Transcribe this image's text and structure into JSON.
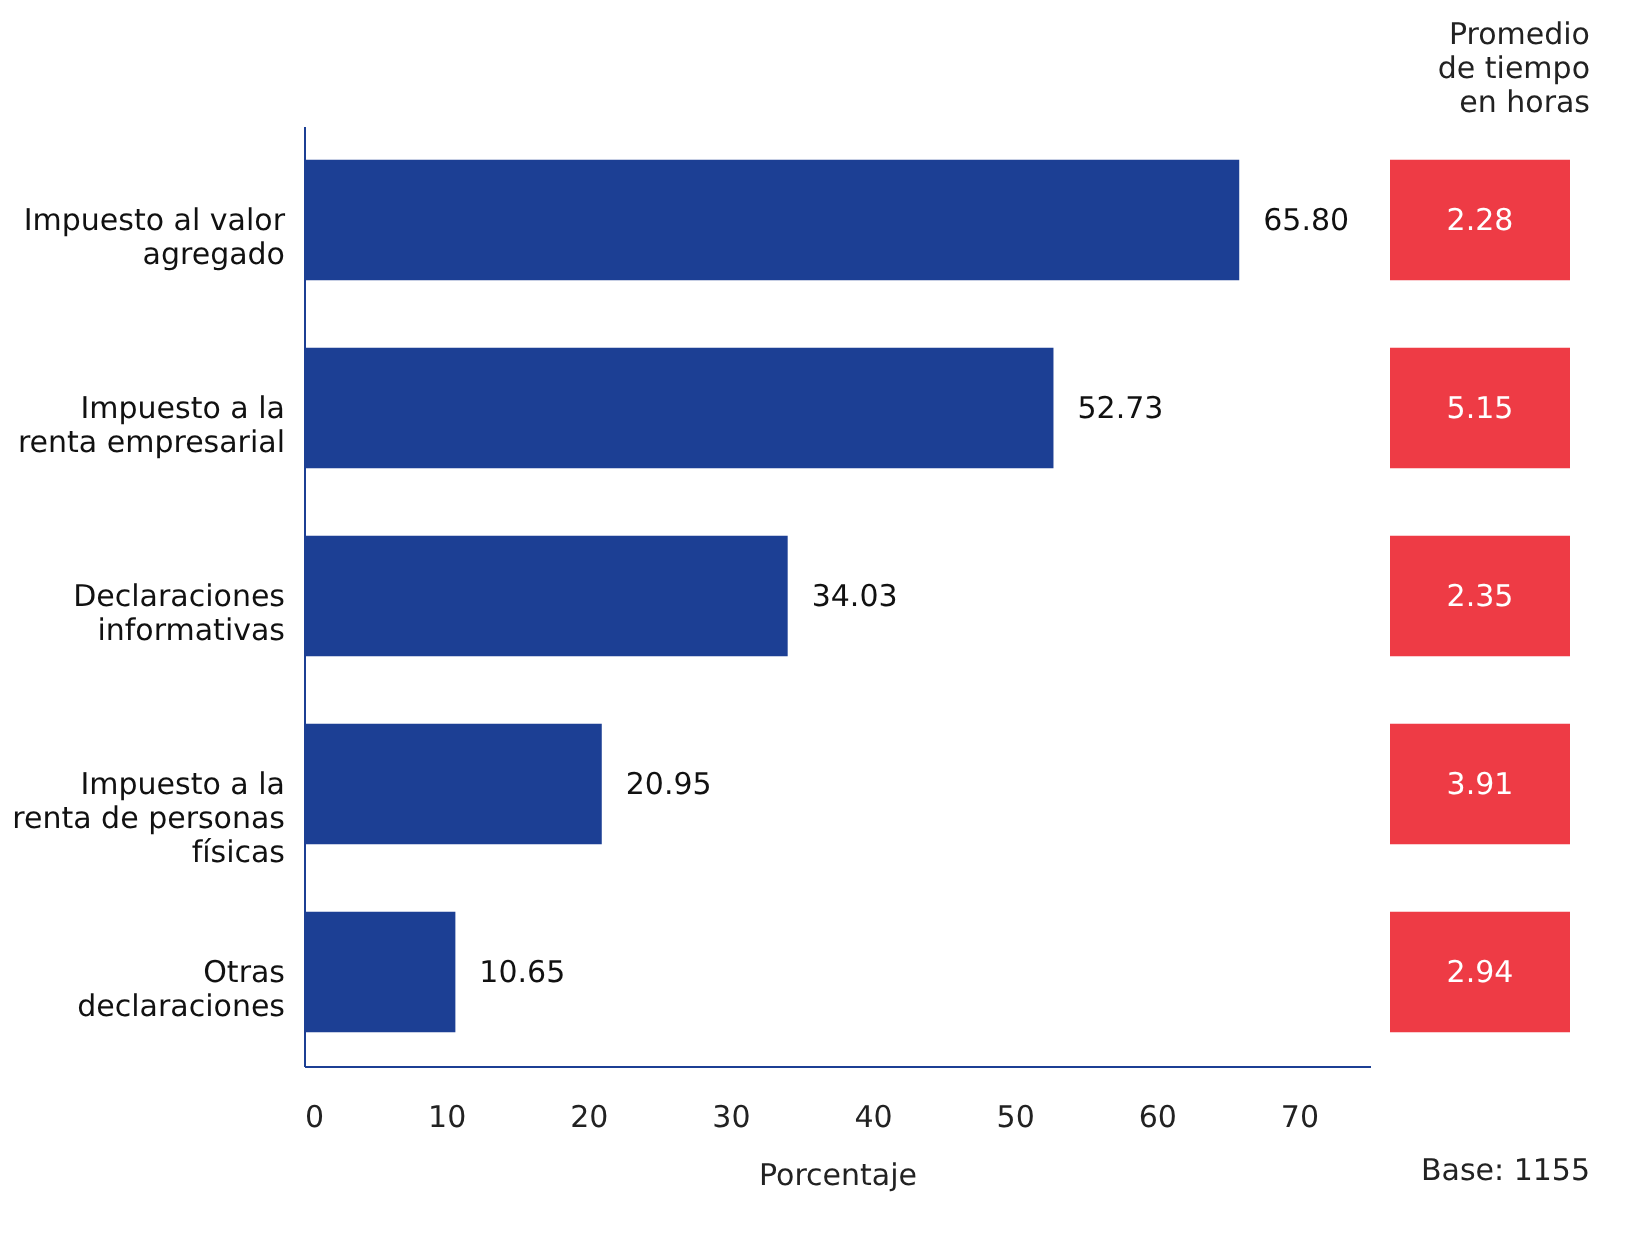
{
  "chart_data": [
    {
      "type": "bar",
      "orientation": "horizontal",
      "categories": [
        "Impuesto al valor agregado",
        "Impuesto a la renta empresarial",
        "Declaraciones informativas",
        "Impuesto a la renta de personas físicas",
        "Otras declaraciones"
      ],
      "values": [
        65.8,
        52.73,
        34.03,
        20.95,
        10.65
      ],
      "color": "#1c3f94",
      "value_labels": [
        "65.80",
        "52.73",
        "34.03",
        "20.95",
        "10.65"
      ],
      "xlim": [
        0,
        75
      ],
      "xticks": [
        0,
        10,
        20,
        30,
        40,
        50,
        60,
        70
      ],
      "xlabel": "Porcentaje",
      "grid": false
    },
    {
      "type": "other",
      "title": "Promedio de tiempo en horas",
      "categories": [
        null,
        null,
        null,
        null,
        null
      ],
      "values": [
        2.28,
        5.15,
        2.35,
        3.91,
        2.94
      ],
      "color": "#ee3b45",
      "value_labels": [
        "2.28",
        "5.15",
        "2.35",
        "3.91",
        "2.94"
      ],
      "annotations": [
        "Base: 1155"
      ]
    }
  ]
}
